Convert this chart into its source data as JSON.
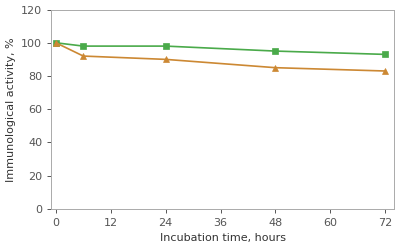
{
  "green_x": [
    0,
    6,
    24,
    48,
    72
  ],
  "green_y": [
    100,
    98,
    98,
    95,
    93
  ],
  "orange_x": [
    0,
    6,
    24,
    48,
    72
  ],
  "orange_y": [
    100,
    92,
    90,
    85,
    83
  ],
  "green_color": "#4aaa4a",
  "orange_color": "#cc8833",
  "xlabel": "Incubation time, hours",
  "ylabel": "Immunological activity, %",
  "xlim": [
    -1,
    74
  ],
  "ylim": [
    0,
    120
  ],
  "xticks": [
    0,
    12,
    24,
    36,
    48,
    60,
    72
  ],
  "yticks": [
    0,
    20,
    40,
    60,
    80,
    100,
    120
  ],
  "line_width": 1.2,
  "marker_size": 5,
  "background_color": "#ffffff",
  "xlabel_fontsize": 8,
  "ylabel_fontsize": 8,
  "tick_fontsize": 8
}
